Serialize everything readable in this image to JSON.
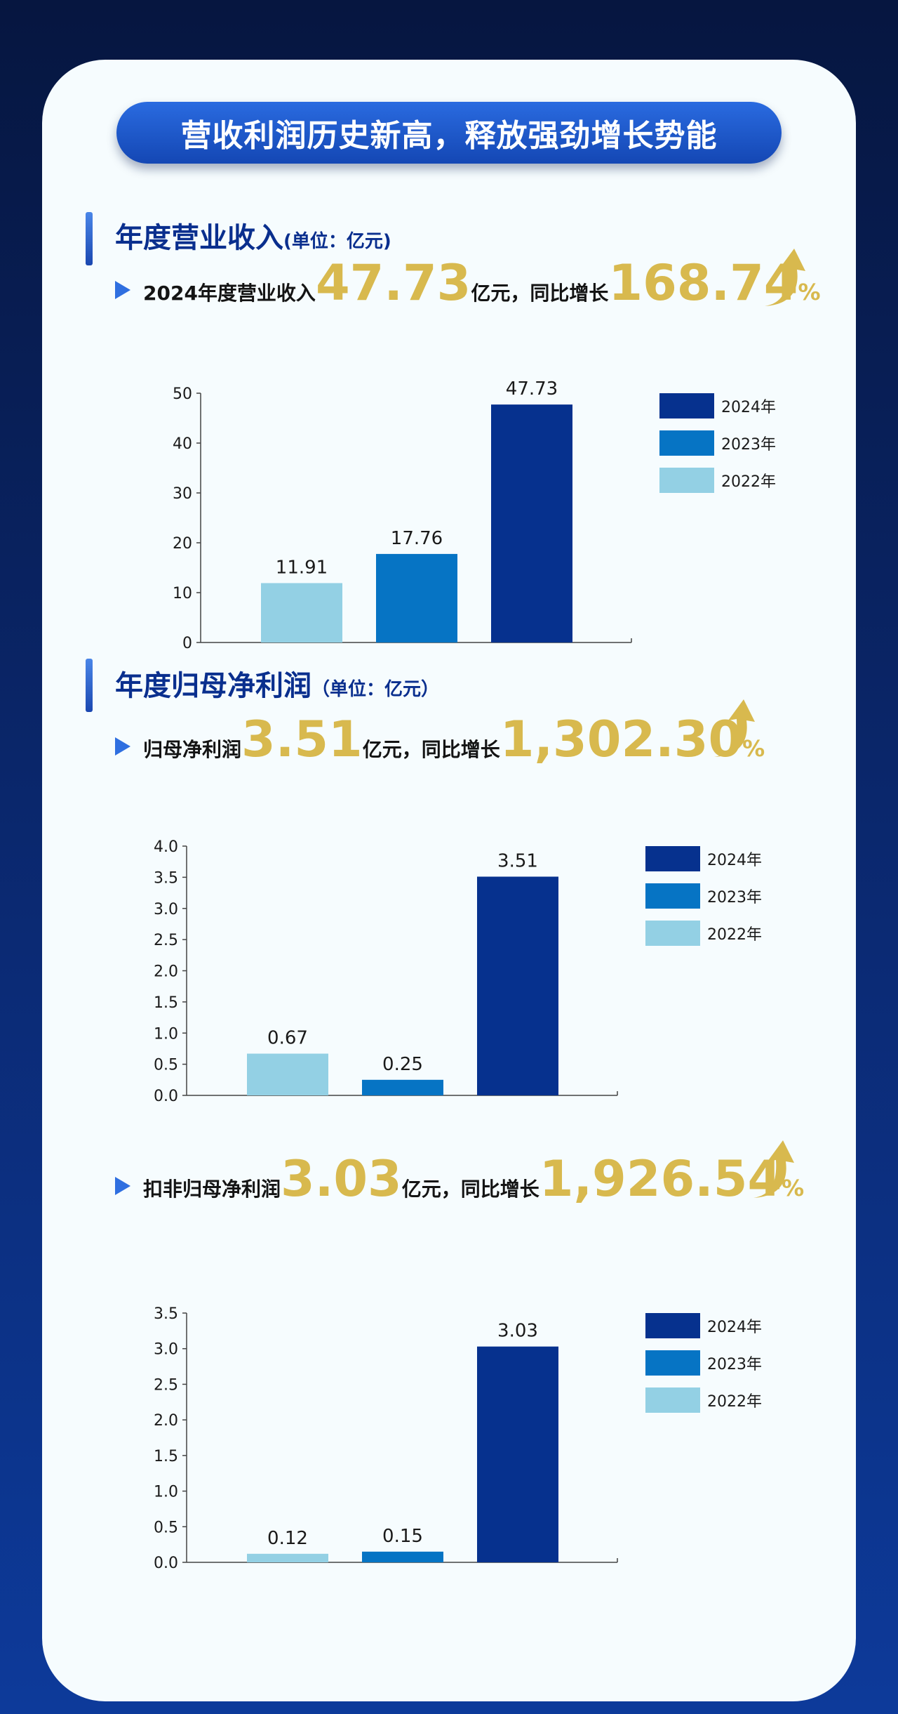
{
  "banner": {
    "title": "营收利润历史新高，释放强劲增长势能"
  },
  "section_revenue": {
    "title": "年度营业收入",
    "unit": "(单位：亿元)",
    "stat": {
      "prefix": "2024年度营业收入",
      "value": "47.73",
      "mid": "亿元，同比增长",
      "growth": "168.74",
      "pct": "%"
    }
  },
  "section_profit": {
    "title": "年度归母净利润",
    "unit": "（单位：亿元）",
    "stat": {
      "prefix": "归母净利润",
      "value": "3.51",
      "mid": "亿元，同比增长",
      "growth": "1,302.30",
      "pct": "%"
    }
  },
  "section_deducted": {
    "stat": {
      "prefix": "扣非归母净利润",
      "value": "3.03",
      "mid": "亿元，同比增长",
      "growth": "1,926.54",
      "pct": "%"
    }
  },
  "colors": {
    "y2024": "#06318e",
    "y2023": "#0674c4",
    "y2022": "#93d0e4",
    "gold": "#d8b94e",
    "navy": "#0a2f8e"
  },
  "chart_data": [
    {
      "type": "bar",
      "categories": [
        "2022年",
        "2023年",
        "2024年"
      ],
      "values": [
        11.91,
        17.76,
        47.73
      ],
      "labels": [
        "11.91",
        "17.76",
        "47.73"
      ],
      "ylim": [
        0,
        50
      ],
      "yticks": [
        "0",
        "10",
        "20",
        "30",
        "40",
        "50"
      ],
      "legend": [
        "2024年",
        "2023年",
        "2022年"
      ],
      "legend_position": "right"
    },
    {
      "type": "bar",
      "categories": [
        "2022年",
        "2023年",
        "2024年"
      ],
      "values": [
        0.67,
        0.25,
        3.51
      ],
      "labels": [
        "0.67",
        "0.25",
        "3.51"
      ],
      "ylim": [
        0,
        4.0
      ],
      "yticks": [
        "0.0",
        "0.5",
        "1.0",
        "1.5",
        "2.0",
        "2.5",
        "3.0",
        "3.5",
        "4.0"
      ],
      "legend": [
        "2024年",
        "2023年",
        "2022年"
      ],
      "legend_position": "right"
    },
    {
      "type": "bar",
      "categories": [
        "2022年",
        "2023年",
        "2024年"
      ],
      "values": [
        0.12,
        0.15,
        3.03
      ],
      "labels": [
        "0.12",
        "0.15",
        "3.03"
      ],
      "ylim": [
        0,
        3.5
      ],
      "yticks": [
        "0.0",
        "0.5",
        "1.0",
        "1.5",
        "2.0",
        "2.5",
        "3.0",
        "3.5"
      ],
      "legend": [
        "2024年",
        "2023年",
        "2022年"
      ],
      "legend_position": "right"
    }
  ]
}
